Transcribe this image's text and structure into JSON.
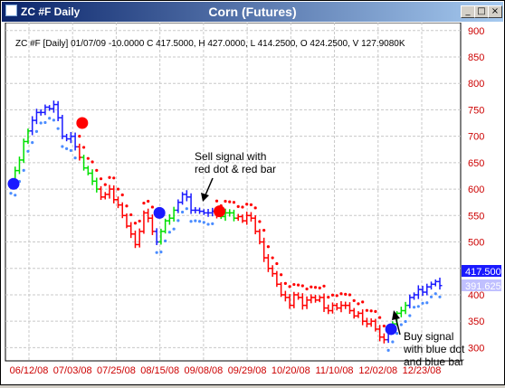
{
  "window": {
    "symbol_title": "ZC #F Daily",
    "center_title": "Corn (Futures)"
  },
  "window_buttons": [
    "_",
    "□",
    "×"
  ],
  "ohlc_text": "ZC #F [Daily] 01/07/09  -10.0000 C 417.5000, H 427.0000, L 414.2500, O 424.2500, V 127.9080K",
  "annotations": {
    "sell": [
      "Sell signal with",
      "red dot & red bar"
    ],
    "buy": [
      "Buy signal",
      "with blue dot",
      "and blue bar"
    ]
  },
  "price_tags": {
    "last": "417.500",
    "indicator": "391.625"
  },
  "colors": {
    "up_trend": "#1a1aff",
    "down_trend": "#ff0000",
    "neutral": "#00e000",
    "grid": "#c8c8c8",
    "axis_text": "#cc0000",
    "title_bar": "#0a246a"
  },
  "chart_data": {
    "type": "ohlc-bar",
    "title": "",
    "ylim": [
      275,
      915
    ],
    "yticks": [
      300,
      350,
      400,
      450,
      500,
      550,
      600,
      650,
      700,
      750,
      800,
      850,
      900
    ],
    "xticks": [
      "06/12/08",
      "07/03/08",
      "07/25/08",
      "08/15/08",
      "09/08/08",
      "09/29/08",
      "10/20/08",
      "11/10/08",
      "12/02/08",
      "12/23/08"
    ],
    "grid": true,
    "bar_colors": "blue = uptrend, red = downtrend, green = transition",
    "signals": [
      {
        "type": "buy",
        "date": "06/09/08",
        "price": 610
      },
      {
        "type": "sell",
        "date": "07/01/08",
        "price": 725
      },
      {
        "type": "buy",
        "date": "08/18/08",
        "price": 555
      },
      {
        "type": "sell",
        "date": "09/09/08",
        "price": 558
      },
      {
        "type": "buy",
        "date": "12/17/08",
        "price": 335
      }
    ],
    "closes": [
      610,
      635,
      655,
      690,
      710,
      730,
      745,
      745,
      755,
      752,
      760,
      735,
      700,
      695,
      700,
      680,
      660,
      640,
      630,
      615,
      600,
      585,
      590,
      600,
      580,
      570,
      550,
      530,
      515,
      495,
      520,
      555,
      545,
      520,
      500,
      520,
      540,
      545,
      560,
      575,
      590,
      585,
      560,
      560,
      558,
      555,
      555,
      558,
      550,
      548,
      555,
      555,
      545,
      548,
      540,
      550,
      545,
      520,
      500,
      470,
      450,
      440,
      420,
      400,
      395,
      380,
      400,
      395,
      380,
      390,
      395,
      390,
      395,
      375,
      370,
      380,
      375,
      380,
      380,
      370,
      360,
      365,
      350,
      345,
      350,
      335,
      320,
      315,
      330,
      345,
      365,
      370,
      380,
      395,
      400,
      410,
      405,
      415,
      420,
      425,
      417.5
    ]
  }
}
